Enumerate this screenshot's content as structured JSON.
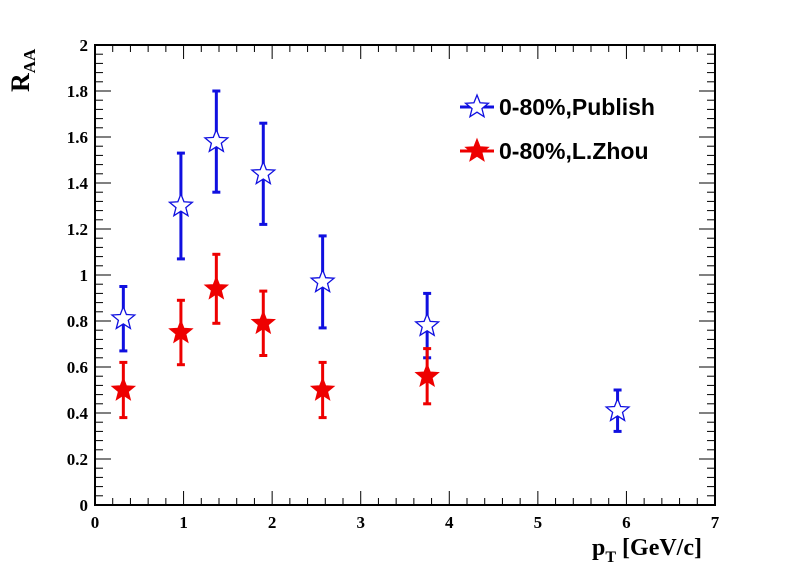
{
  "chart_data": {
    "type": "scatter",
    "xlabel": {
      "main": "p",
      "sub": "T",
      "rest": " [GeV/c]"
    },
    "ylabel": {
      "main": "R",
      "sub": "AA"
    },
    "xlim": [
      0,
      7
    ],
    "ylim": [
      0,
      2
    ],
    "x_ticks": [
      "0",
      "1",
      "2",
      "3",
      "4",
      "5",
      "6",
      "7"
    ],
    "y_ticks": [
      "0",
      "0.2",
      "0.4",
      "0.6",
      "0.8",
      "1",
      "1.2",
      "1.4",
      "1.6",
      "1.8",
      "2"
    ],
    "legend_position": "top-right",
    "series": [
      {
        "name": "0-80%,Publish",
        "color": "#1010e0",
        "marker": "open-star",
        "points": [
          {
            "x": 0.32,
            "y": 0.81,
            "err": 0.14
          },
          {
            "x": 0.97,
            "y": 1.3,
            "err": 0.23
          },
          {
            "x": 1.37,
            "y": 1.58,
            "err": 0.22
          },
          {
            "x": 1.9,
            "y": 1.44,
            "err": 0.22
          },
          {
            "x": 2.57,
            "y": 0.97,
            "err": 0.2
          },
          {
            "x": 3.75,
            "y": 0.78,
            "err": 0.14
          },
          {
            "x": 5.9,
            "y": 0.41,
            "err": 0.09
          }
        ]
      },
      {
        "name": "0-80%,L.Zhou",
        "color": "#ee0000",
        "marker": "filled-star",
        "points": [
          {
            "x": 0.32,
            "y": 0.5,
            "err": 0.12
          },
          {
            "x": 0.97,
            "y": 0.75,
            "err": 0.14
          },
          {
            "x": 1.37,
            "y": 0.94,
            "err": 0.15
          },
          {
            "x": 1.9,
            "y": 0.79,
            "err": 0.14
          },
          {
            "x": 2.57,
            "y": 0.5,
            "err": 0.12
          },
          {
            "x": 3.75,
            "y": 0.56,
            "err": 0.12
          }
        ]
      }
    ]
  }
}
